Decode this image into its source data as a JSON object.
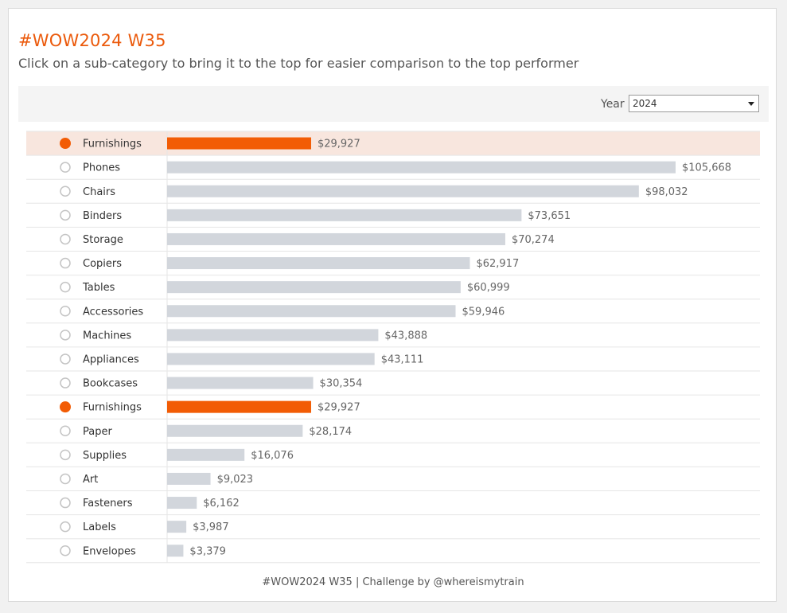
{
  "header": {
    "title": "#WOW2024 W35",
    "subtitle": "Click on a sub-category to bring it to the top for easier comparison to the top performer"
  },
  "filter": {
    "label": "Year",
    "selected": "2024"
  },
  "colors": {
    "accent": "#f25c05",
    "bar": "#d2d6dc",
    "highlight_row": "#f8e6de",
    "radio_border": "#c4c4c4",
    "grid": "#e6e6e6"
  },
  "chart_data": {
    "type": "bar",
    "orientation": "horizontal",
    "title": "",
    "xlabel": "",
    "ylabel": "",
    "xlim": [
      0,
      105668
    ],
    "selected_category": "Furnishings",
    "pinned": {
      "category": "Furnishings",
      "value": 29927,
      "label": "$29,927"
    },
    "categories": [
      "Phones",
      "Chairs",
      "Binders",
      "Storage",
      "Copiers",
      "Tables",
      "Accessories",
      "Machines",
      "Appliances",
      "Bookcases",
      "Furnishings",
      "Paper",
      "Supplies",
      "Art",
      "Fasteners",
      "Labels",
      "Envelopes"
    ],
    "values": [
      105668,
      98032,
      73651,
      70274,
      62917,
      60999,
      59946,
      43888,
      43111,
      30354,
      29927,
      28174,
      16076,
      9023,
      6162,
      3987,
      3379
    ],
    "value_labels": [
      "$105,668",
      "$98,032",
      "$73,651",
      "$70,274",
      "$62,917",
      "$60,999",
      "$59,946",
      "$43,888",
      "$43,111",
      "$30,354",
      "$29,927",
      "$28,174",
      "$16,076",
      "$9,023",
      "$6,162",
      "$3,987",
      "$3,379"
    ]
  },
  "footer": {
    "text": "#WOW2024 W35 | Challenge by @whereismytrain"
  }
}
